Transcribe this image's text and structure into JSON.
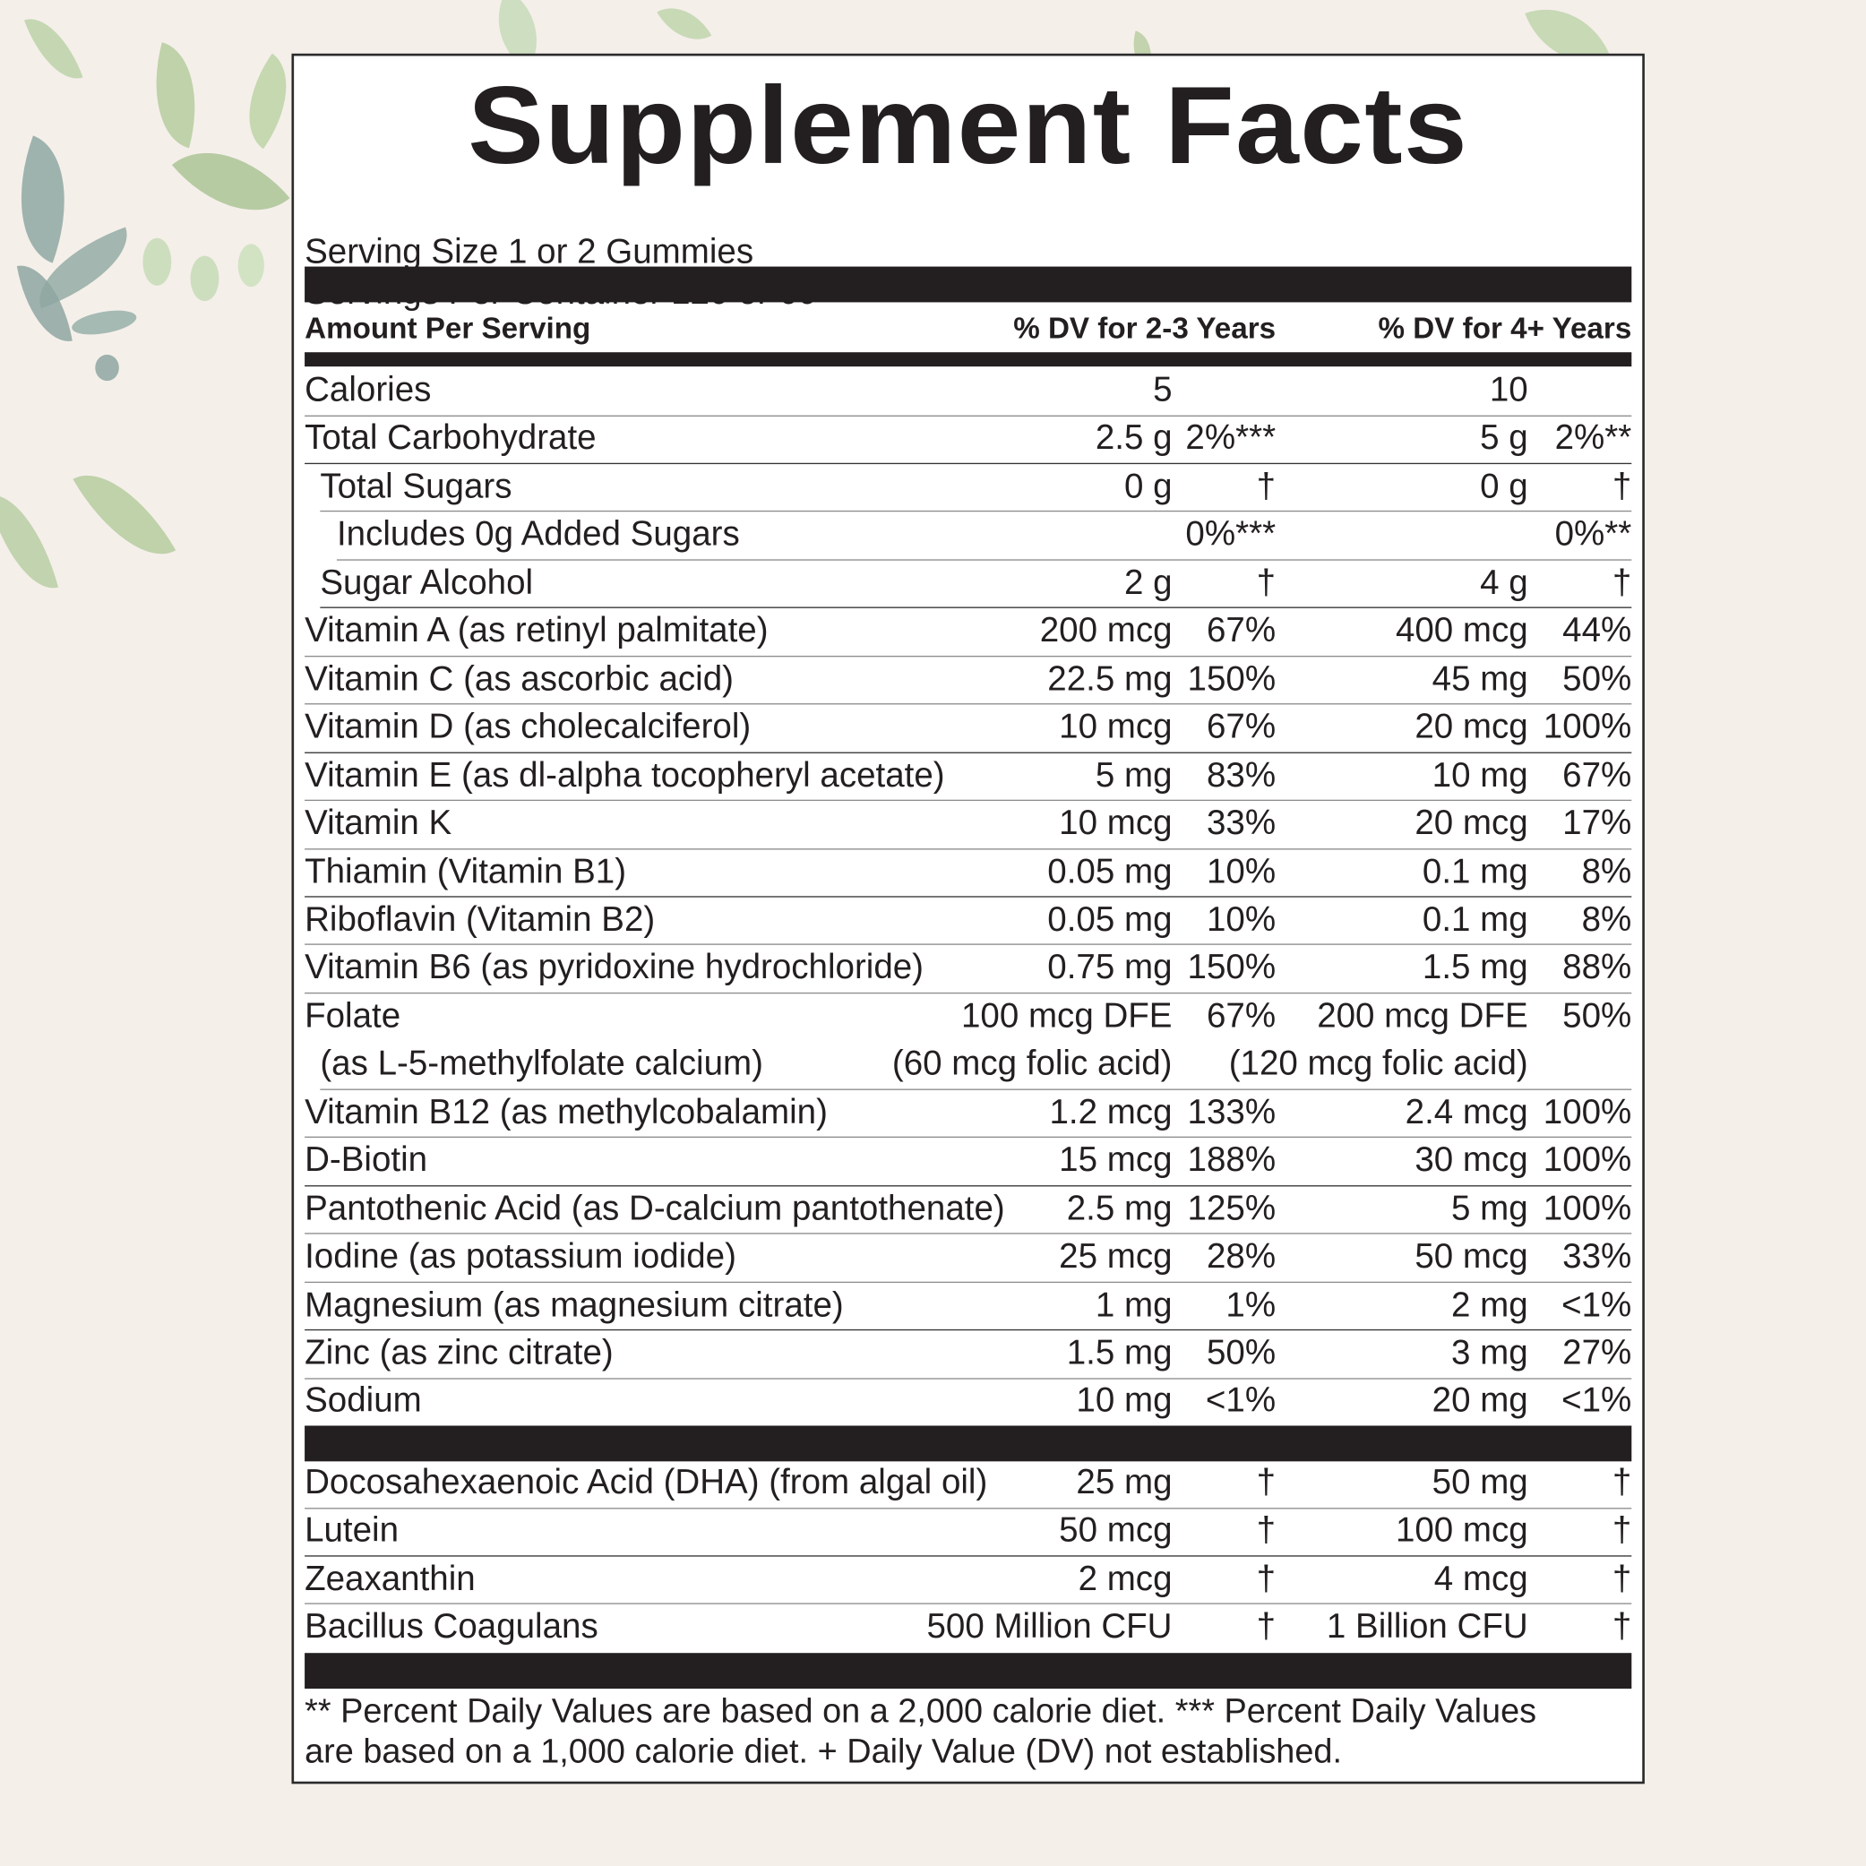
{
  "title": "Supplement Facts",
  "serving_size": "Serving Size 1 or 2 Gummies",
  "servings_per_container": "Servings Per Container 120 or 60",
  "header": {
    "amount_per_serving": "Amount Per Serving",
    "dv_2_3": "% DV for 2-3 Years",
    "dv_4_plus": "% DV for 4+ Years"
  },
  "rows": [
    {
      "name": "Calories",
      "amt1": "5",
      "dv1": "",
      "amt2": "10",
      "dv2": ""
    },
    {
      "name": "Total Carbohydrate",
      "amt1": "2.5 g",
      "dv1": "2%***",
      "amt2": "5 g",
      "dv2": "2%**"
    },
    {
      "name": "Total Sugars",
      "amt1": "0 g",
      "dv1": "†",
      "amt2": "0 g",
      "dv2": "†"
    },
    {
      "name": "Includes 0g Added Sugars",
      "amt1": "",
      "dv1": "0%***",
      "amt2": "",
      "dv2": "0%**"
    },
    {
      "name": "Sugar Alcohol",
      "amt1": "2 g",
      "dv1": "†",
      "amt2": "4 g",
      "dv2": "†"
    },
    {
      "name": "Vitamin A (as retinyl palmitate)",
      "amt1": "200 mcg",
      "dv1": "67%",
      "amt2": "400 mcg",
      "dv2": "44%"
    },
    {
      "name": "Vitamin C (as ascorbic acid)",
      "amt1": "22.5 mg",
      "dv1": "150%",
      "amt2": "45 mg",
      "dv2": "50%"
    },
    {
      "name": "Vitamin D (as cholecalciferol)",
      "amt1": "10 mcg",
      "dv1": "67%",
      "amt2": "20 mcg",
      "dv2": "100%"
    },
    {
      "name": "Vitamin E (as dl-alpha tocopheryl acetate)",
      "amt1": "5 mg",
      "dv1": "83%",
      "amt2": "10 mg",
      "dv2": "67%"
    },
    {
      "name": "Vitamin K",
      "amt1": "10 mcg",
      "dv1": "33%",
      "amt2": "20 mcg",
      "dv2": "17%"
    },
    {
      "name": "Thiamin (Vitamin B1)",
      "amt1": "0.05 mg",
      "dv1": "10%",
      "amt2": "0.1 mg",
      "dv2": "8%"
    },
    {
      "name": "Riboflavin (Vitamin B2)",
      "amt1": "0.05 mg",
      "dv1": "10%",
      "amt2": "0.1 mg",
      "dv2": "8%"
    },
    {
      "name": "Vitamin B6 (as pyridoxine hydrochloride)",
      "amt1": "0.75 mg",
      "dv1": "150%",
      "amt2": "1.5 mg",
      "dv2": "88%"
    },
    {
      "name": "Folate",
      "amt1": "100 mcg DFE",
      "dv1": "67%",
      "amt2": "200 mcg DFE",
      "dv2": "50%"
    },
    {
      "name": "(as L-5-methylfolate calcium)",
      "amt1": "(60 mcg folic acid)",
      "dv1": "",
      "amt2": "(120 mcg folic acid)",
      "dv2": ""
    },
    {
      "name": "Vitamin B12 (as methylcobalamin)",
      "amt1": "1.2 mcg",
      "dv1": "133%",
      "amt2": "2.4 mcg",
      "dv2": "100%"
    },
    {
      "name": "D-Biotin",
      "amt1": "15 mcg",
      "dv1": "188%",
      "amt2": "30 mcg",
      "dv2": "100%"
    },
    {
      "name": "Pantothenic Acid (as D-calcium pantothenate)",
      "amt1": "2.5 mg",
      "dv1": "125%",
      "amt2": "5 mg",
      "dv2": "100%"
    },
    {
      "name": "Iodine (as potassium iodide)",
      "amt1": "25 mcg",
      "dv1": "28%",
      "amt2": "50 mcg",
      "dv2": "33%"
    },
    {
      "name": "Magnesium (as magnesium citrate)",
      "amt1": "1 mg",
      "dv1": "1%",
      "amt2": "2 mg",
      "dv2": "<1%"
    },
    {
      "name": "Zinc (as zinc citrate)",
      "amt1": "1.5 mg",
      "dv1": "50%",
      "amt2": "3 mg",
      "dv2": "27%"
    },
    {
      "name": "Sodium",
      "amt1": "10 mg",
      "dv1": "<1%",
      "amt2": "20 mg",
      "dv2": "<1%"
    }
  ],
  "other_rows": [
    {
      "name": "Docosahexaenoic Acid (DHA) (from algal oil)",
      "amt1": "25 mg",
      "dv1": "†",
      "amt2": "50 mg",
      "dv2": "†"
    },
    {
      "name": "Lutein",
      "amt1": "50 mcg",
      "dv1": "†",
      "amt2": "100 mcg",
      "dv2": "†"
    },
    {
      "name": "Zeaxanthin",
      "amt1": "2 mcg",
      "dv1": "†",
      "amt2": "4 mcg",
      "dv2": "†"
    },
    {
      "name": "Bacillus Coagulans",
      "amt1": "500 Million CFU",
      "dv1": "†",
      "amt2": "1 Billion CFU",
      "dv2": "†"
    }
  ],
  "footnote": {
    "line1": "** Percent Daily Values are based on a 2,000 calorie diet. *** Percent Daily Values",
    "line2": "are based on a 1,000 calorie diet. + Daily Value (DV) not established."
  },
  "colors": {
    "background": "#f5efea",
    "label_bg": "#ffffff",
    "text": "#231f20",
    "rule": "#8c8c8c",
    "leaf_green": "#b9d0a4",
    "leaf_teal": "#8fa8a3"
  }
}
